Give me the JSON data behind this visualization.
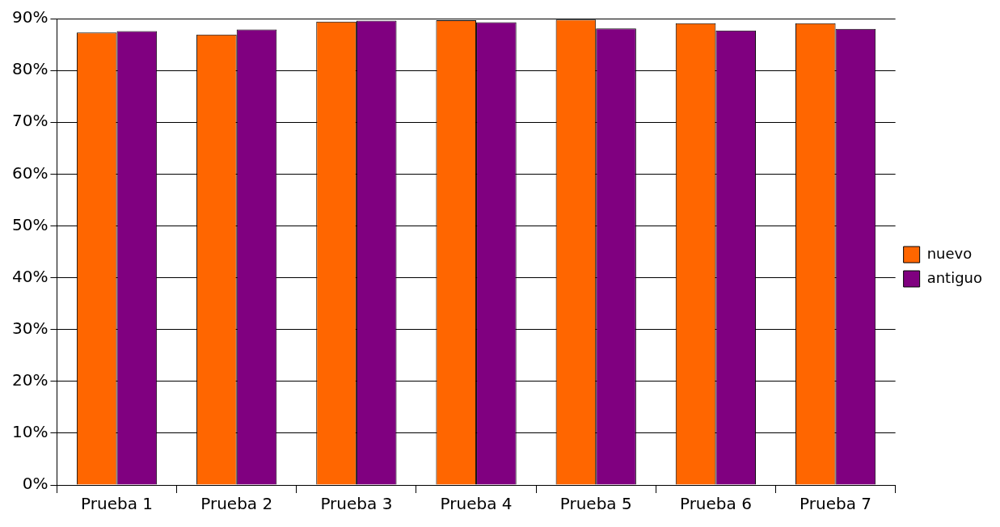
{
  "chart_data": {
    "type": "bar",
    "categories": [
      "Prueba 1",
      "Prueba 2",
      "Prueba 3",
      "Prueba 4",
      "Prueba 5",
      "Prueba 6",
      "Prueba 7"
    ],
    "series": [
      {
        "name": "nuevo",
        "color": "#ff6600",
        "values": [
          87.3,
          86.9,
          89.4,
          89.7,
          89.8,
          89.1,
          89.1
        ]
      },
      {
        "name": "antiguo",
        "color": "#800080",
        "values": [
          87.6,
          87.9,
          89.6,
          89.3,
          88.1,
          87.7,
          88.0
        ]
      }
    ],
    "ylim": [
      0,
      90
    ],
    "yticks": [
      {
        "value": 0,
        "label": "0%"
      },
      {
        "value": 10,
        "label": "10%"
      },
      {
        "value": 20,
        "label": "20%"
      },
      {
        "value": 30,
        "label": "30%"
      },
      {
        "value": 40,
        "label": "40%"
      },
      {
        "value": 50,
        "label": "50%"
      },
      {
        "value": 60,
        "label": "60%"
      },
      {
        "value": 70,
        "label": "70%"
      },
      {
        "value": 80,
        "label": "80%"
      },
      {
        "value": 90,
        "label": "90%"
      }
    ],
    "grid": "y",
    "legend": "right"
  }
}
